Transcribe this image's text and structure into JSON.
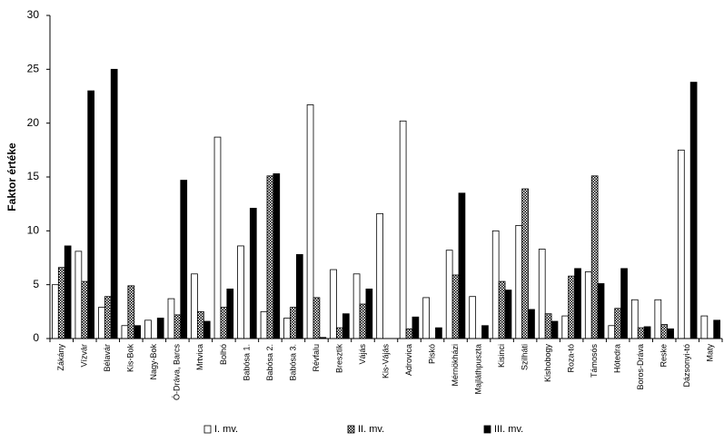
{
  "chart_data": {
    "type": "bar",
    "y_label": "Faktor értéke",
    "categories": [
      "Zákány",
      "Vízvár",
      "Bélavár",
      "Kis-Bok",
      "Nagy-Bok",
      "Ó-Dráva, Barcs",
      "Mrtvica",
      "Bolhó",
      "Babósa 1.",
      "Babósa 2.",
      "Babósa 3.",
      "Révfalu",
      "Bresztik",
      "Vájás",
      "Kis-Vájás",
      "Adrovica",
      "Piskó",
      "Mérnökházi",
      "Majláthpuszta",
      "Kisinci",
      "Szilháti",
      "Kishobogy",
      "Roza-tó",
      "Támosós",
      "Hótedra",
      "Boros-Dráva",
      "Reske",
      "Dázsonyi-tó",
      "Maty"
    ],
    "series": [
      {
        "name": "I. mv.",
        "color": "#ffffff",
        "values": [
          5.0,
          8.1,
          2.9,
          1.2,
          1.7,
          3.7,
          6.0,
          18.7,
          8.6,
          2.5,
          1.9,
          21.7,
          6.4,
          6.0,
          11.6,
          20.2,
          3.8,
          8.2,
          3.9,
          10.0,
          10.5,
          8.3,
          2.1,
          6.2,
          1.2,
          3.6,
          3.6,
          17.5,
          2.1
        ]
      },
      {
        "name": "II. mv.",
        "color": "#000000",
        "pattern": "checker",
        "values": [
          6.6,
          5.3,
          3.9,
          4.9,
          0,
          2.2,
          2.5,
          2.9,
          0,
          15.1,
          2.9,
          3.8,
          1.0,
          3.2,
          0,
          0.9,
          0,
          5.9,
          0,
          5.3,
          13.9,
          2.3,
          5.8,
          15.1,
          2.8,
          1.0,
          1.3,
          0,
          0
        ]
      },
      {
        "name": "III. mv.",
        "color": "#000000",
        "values": [
          8.6,
          23.0,
          25.0,
          1.2,
          1.9,
          14.7,
          1.6,
          4.6,
          12.1,
          15.3,
          7.8,
          0.1,
          2.3,
          4.6,
          0,
          2.0,
          1.0,
          13.5,
          1.2,
          4.5,
          2.7,
          1.6,
          6.5,
          5.1,
          6.5,
          1.1,
          0.9,
          23.8,
          1.7
        ]
      }
    ],
    "ylim": [
      0,
      30
    ],
    "yticks": [
      0,
      5,
      10,
      15,
      20,
      25,
      30
    ],
    "legend": "bottom"
  }
}
